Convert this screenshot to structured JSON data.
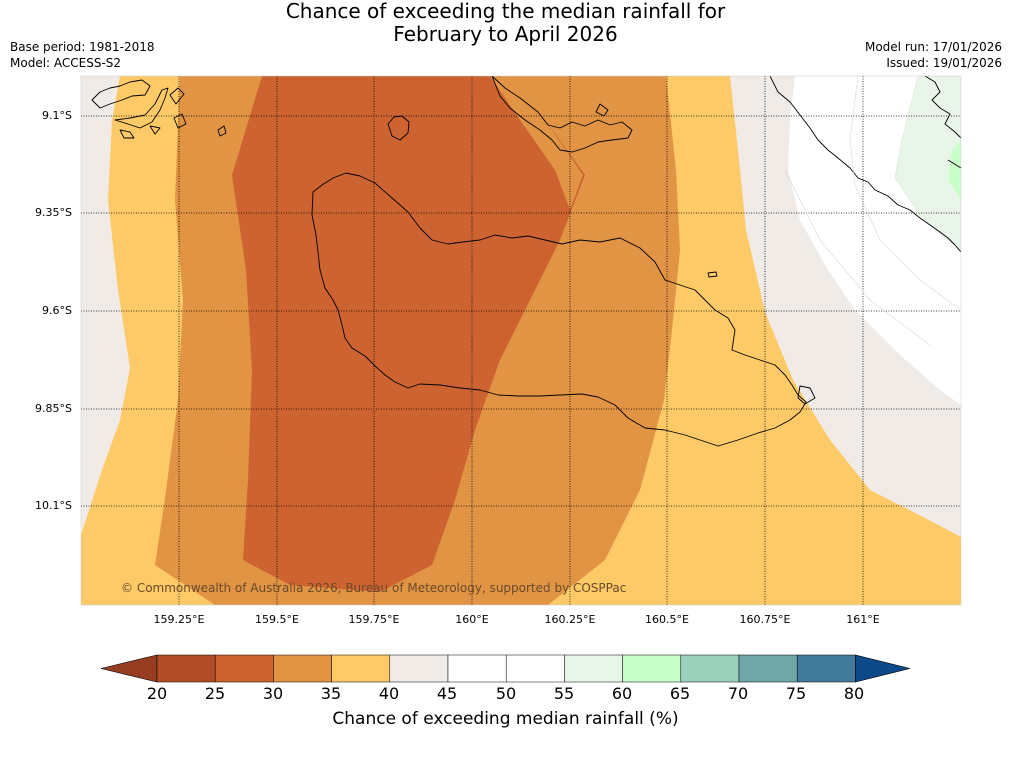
{
  "title": {
    "line1": "Chance of exceeding the median rainfall for",
    "line2": "February to April 2026"
  },
  "meta": {
    "base_period": "Base period: 1981-2018",
    "model": "Model: ACCESS-S2",
    "model_run": "Model run: 17/01/2026",
    "issued": "Issued: 19/01/2026"
  },
  "map": {
    "lat_labels": [
      "9.1°S",
      "9.35°S",
      "9.6°S",
      "9.85°S",
      "10.1°S"
    ],
    "lon_labels": [
      "159.25°E",
      "159.5°E",
      "159.75°E",
      "160°E",
      "160.25°E",
      "160.5°E",
      "160.75°E",
      "161°E"
    ],
    "copyright": "© Commonwealth of Australia 2026, Bureau of Meteorology, supported by COSPPac",
    "zones": [
      {
        "band": "40-45",
        "color": "#f0ebe6"
      },
      {
        "band": "35-40",
        "color": "#fdca67"
      },
      {
        "band": "30-35",
        "color": "#e19444"
      },
      {
        "band": "25-30",
        "color": "#cc6331"
      },
      {
        "band": "45-55",
        "color": "#ffffff"
      },
      {
        "band": "55-60",
        "color": "#eaf5ea"
      },
      {
        "band": "60-65",
        "color": "#c9ffc9"
      }
    ]
  },
  "colorbar": {
    "title": "Chance of exceeding median rainfall (%)",
    "labels": [
      "20",
      "25",
      "30",
      "35",
      "40",
      "45",
      "50",
      "55",
      "60",
      "65",
      "70",
      "75",
      "80"
    ],
    "under_color": "#963d22",
    "over_color": "#0c4a8a",
    "colors": [
      "#b04d26",
      "#cc6331",
      "#e19444",
      "#fdca67",
      "#f0ebe6",
      "#ffffff",
      "#ffffff",
      "#eaf5ea",
      "#c9ffc9",
      "#9bd1ba",
      "#6fa6a8",
      "#427a9b"
    ]
  }
}
